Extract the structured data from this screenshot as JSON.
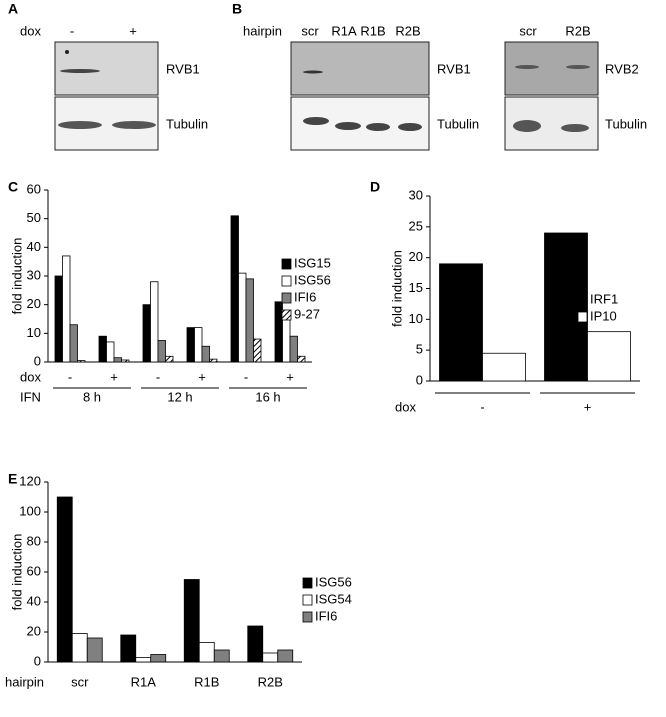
{
  "panels": {
    "A": {
      "label": "A",
      "dox": "dox",
      "conditions": [
        "-",
        "+"
      ],
      "blot_labels": [
        "RVB1",
        "Tubulin"
      ]
    },
    "B": {
      "label": "B",
      "hairpin": "hairpin",
      "lanes_left": [
        "scr",
        "R1A",
        "R1B",
        "R2B"
      ],
      "blot_labels_left": [
        "RVB1",
        "Tubulin"
      ],
      "lanes_right": [
        "scr",
        "R2B"
      ],
      "blot_labels_right": [
        "RVB2",
        "Tubulin"
      ]
    }
  },
  "chart_data": [
    {
      "type": "bar",
      "panel": "C",
      "ylabel": "fold induction",
      "xlabel": "dox",
      "group_title": "IFN",
      "categories": [
        "-",
        "+",
        "-",
        "+",
        "-",
        "+"
      ],
      "groups": [
        "8 h",
        "12 h",
        "16 h"
      ],
      "ylim": [
        0,
        60
      ],
      "yticks": [
        0,
        10,
        20,
        30,
        40,
        50,
        60
      ],
      "series": [
        {
          "name": "ISG15",
          "color": "#000000",
          "values": [
            30,
            9,
            20,
            12,
            51,
            21
          ]
        },
        {
          "name": "ISG56",
          "color": "#ffffff",
          "values": [
            37,
            7,
            28,
            12,
            31,
            18
          ]
        },
        {
          "name": "IFI6",
          "color": "#808080",
          "values": [
            13,
            1.5,
            7.5,
            5.5,
            29,
            9
          ]
        },
        {
          "name": "9-27",
          "color": "#000000",
          "hatch": true,
          "values": [
            0.5,
            0.7,
            2,
            1,
            8,
            2
          ]
        }
      ]
    },
    {
      "type": "bar",
      "panel": "D",
      "ylabel": "fold induction",
      "xlabel": "dox",
      "categories": [
        "-",
        "+"
      ],
      "ylim": [
        0,
        30
      ],
      "yticks": [
        0,
        5,
        10,
        15,
        20,
        25,
        30
      ],
      "series": [
        {
          "name": "IRF1",
          "color": "#000000",
          "values": [
            19,
            24
          ]
        },
        {
          "name": "IP10",
          "color": "#ffffff",
          "values": [
            4.5,
            8
          ]
        }
      ]
    },
    {
      "type": "bar",
      "panel": "E",
      "ylabel": "fold induction",
      "xlabel": "hairpin",
      "categories": [
        "scr",
        "R1A",
        "R1B",
        "R2B"
      ],
      "ylim": [
        0,
        120
      ],
      "yticks": [
        0,
        20,
        40,
        60,
        80,
        100,
        120
      ],
      "series": [
        {
          "name": "ISG56",
          "color": "#000000",
          "values": [
            110,
            18,
            55,
            24
          ]
        },
        {
          "name": "ISG54",
          "color": "#ffffff",
          "values": [
            19,
            3,
            13,
            6
          ]
        },
        {
          "name": "IFI6",
          "color": "#808080",
          "values": [
            16,
            5,
            8,
            8
          ]
        }
      ]
    }
  ]
}
